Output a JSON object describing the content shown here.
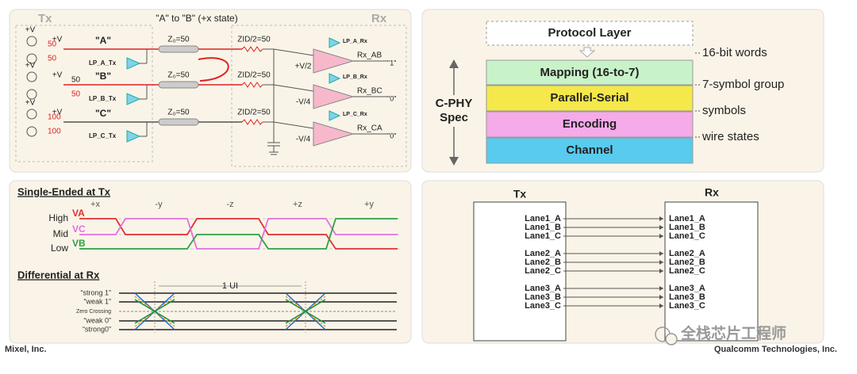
{
  "circuit": {
    "tx_label": "Tx",
    "rx_label": "Rx",
    "state": "\"A\" to \"B\" (+x state)",
    "supply": [
      "+V",
      "+V",
      "+V",
      "+V",
      "+V",
      "+V"
    ],
    "tx_resistors": [
      "50",
      "50",
      "50",
      "50",
      "100",
      "100"
    ],
    "wires": [
      "\"A\"",
      "\"B\"",
      "\"C\""
    ],
    "lp_tx": [
      "LP_A_Tx",
      "LP_B_Tx",
      "LP_C_Tx"
    ],
    "channel": [
      "Z₀=50",
      "Z₀=50",
      "Z₀=50"
    ],
    "termination": [
      "ZID/2=50",
      "ZID/2=50",
      "ZID/2=50"
    ],
    "lp_rx": [
      "LP_A_Rx",
      "LP_B_Rx",
      "LP_C_Rx"
    ],
    "thresholds": [
      "+V/2",
      "-V/4",
      "-V/4"
    ],
    "receivers": [
      "Rx_AB",
      "Rx_BC",
      "Rx_CA"
    ],
    "outputs": [
      "\"1\"",
      "\"0\"",
      "\"0\""
    ]
  },
  "stack": {
    "layers": [
      "Protocol Layer",
      "Mapping (16-to-7)",
      "Parallel-Serial",
      "Encoding",
      "Channel"
    ],
    "spec": [
      "C-PHY",
      "Spec"
    ],
    "notes": [
      "16-bit words",
      "7-symbol group",
      "symbols",
      "wire states"
    ]
  },
  "waveforms": {
    "single_title": "Single-Ended at Tx",
    "states": [
      "+x",
      "-y",
      "-z",
      "+z",
      "+y"
    ],
    "levels": [
      "High",
      "Mid",
      "Low"
    ],
    "signals": [
      "VA",
      "VC",
      "VB"
    ],
    "diff_title": "Differential at Rx",
    "ui": "1 UI",
    "eye_levels": [
      "“strong 1”",
      "“weak 1”",
      "Zero Crossing",
      "“weak 0”",
      "“strong0”"
    ]
  },
  "lanes": {
    "tx": "Tx",
    "rx": "Rx",
    "tx_lanes": [
      "Lane1_A",
      "Lane1_B",
      "Lane1_C",
      "Lane2_A",
      "Lane2_B",
      "Lane2_C",
      "Lane3_A",
      "Lane3_B",
      "Lane3_C"
    ],
    "rx_lanes": [
      "Lane1_A",
      "Lane1_B",
      "Lane1_C",
      "Lane2_A",
      "Lane2_B",
      "Lane2_C",
      "Lane3_A",
      "Lane3_B",
      "Lane3_C"
    ]
  },
  "footer": {
    "left": "Mixel, Inc.",
    "right": "Qualcomm Technologies, Inc.",
    "watermark": "全栈芯片工程师"
  }
}
